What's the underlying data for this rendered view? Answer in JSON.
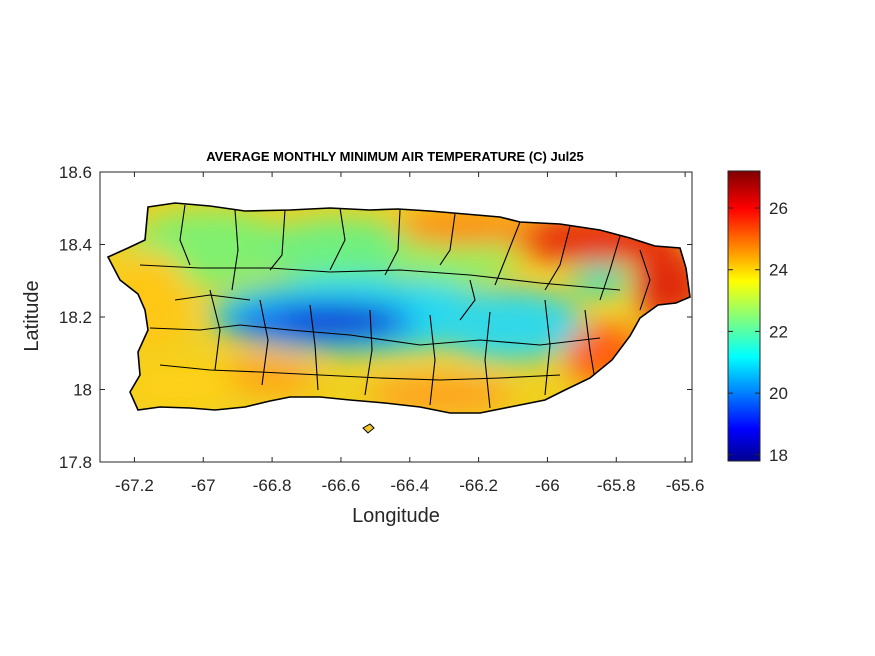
{
  "map": {
    "title": "AVERAGE MONTHLY MINIMUM AIR TEMPERATURE (C) Jul25",
    "xlabel": "Longitude",
    "ylabel": "Latitude",
    "xlim": [
      -67.3,
      -65.58
    ],
    "ylim": [
      17.8,
      18.6
    ],
    "x_ticks": [
      "-67.2",
      "-67",
      "-66.8",
      "-66.6",
      "-66.4",
      "-66.2",
      "-66",
      "-65.8",
      "-65.6"
    ],
    "x_tick_values": [
      -67.2,
      -67,
      -66.8,
      -66.6,
      -66.4,
      -66.2,
      -66,
      -65.8,
      -65.6
    ],
    "y_ticks": [
      "18.6",
      "18.4",
      "18.2",
      "18"
    ],
    "y_tick_values": [
      18.6,
      18.4,
      18.2,
      18.0,
      17.8
    ],
    "y_tick_labels_all": [
      "18.6",
      "18.4",
      "18.2",
      "18",
      "17.8"
    ],
    "region": "Puerto Rico",
    "colormap": "jet",
    "colorbar": {
      "min": 17.8,
      "max": 27.2,
      "ticks": [
        "26",
        "24",
        "22",
        "20",
        "18"
      ],
      "tick_values": [
        26,
        24,
        22,
        20,
        18
      ]
    },
    "warm_region_color": "#c81e14",
    "cool_region_color": "#1e3cdc",
    "boundary_color": "#000000"
  }
}
